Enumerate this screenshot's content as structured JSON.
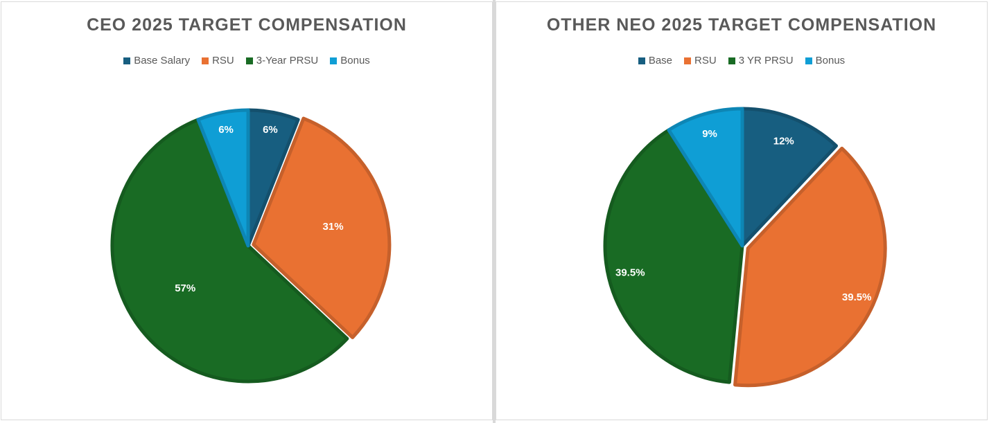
{
  "colors": {
    "base": "#175e80",
    "rsu": "#e97132",
    "prsu": "#196b24",
    "bonus": "#0f9ed5"
  },
  "chart_data": [
    {
      "type": "pie",
      "title": "CEO 2025 TARGET COMPENSATION",
      "legend_position": "top",
      "categories": [
        "Base Salary",
        "RSU",
        "3-Year PRSU",
        "Bonus"
      ],
      "values": [
        6,
        31,
        57,
        6
      ],
      "labels": [
        "6%",
        "31%",
        "57%",
        "6%"
      ],
      "colors": [
        "#175e80",
        "#e97132",
        "#196b24",
        "#0f9ed5"
      ],
      "exploded": [
        false,
        true,
        false,
        false
      ]
    },
    {
      "type": "pie",
      "title": "OTHER NEO 2025 TARGET COMPENSATION",
      "legend_position": "top",
      "categories": [
        "Base",
        "RSU",
        "3 YR PRSU",
        "Bonus"
      ],
      "values": [
        12,
        39.5,
        39.5,
        9
      ],
      "labels": [
        "12%",
        "39.5%",
        "39.5%",
        "9%"
      ],
      "colors": [
        "#175e80",
        "#e97132",
        "#196b24",
        "#0f9ed5"
      ],
      "exploded": [
        false,
        true,
        false,
        false
      ]
    }
  ]
}
